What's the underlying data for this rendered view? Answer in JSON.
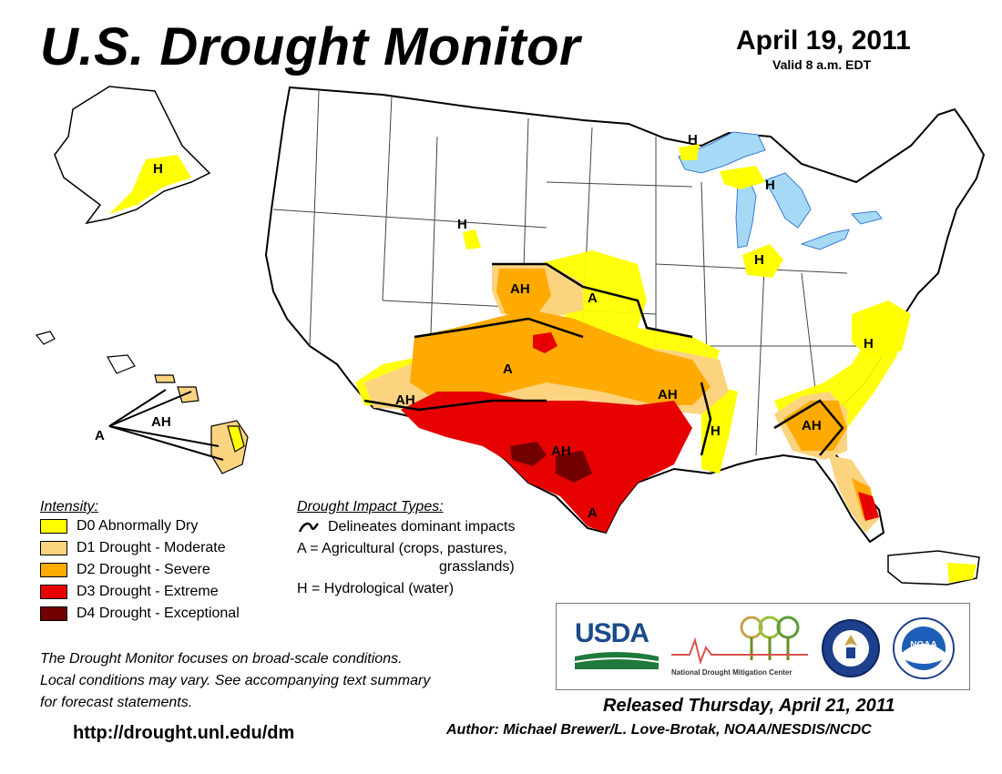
{
  "header": {
    "title": "U.S. Drought Monitor",
    "date": "April 19, 2011",
    "valid": "Valid 8 a.m. EDT"
  },
  "legend": {
    "intensity_heading": "Intensity:",
    "items": [
      {
        "label": "D0 Abnormally Dry",
        "color": "#ffff00"
      },
      {
        "label": "D1 Drought - Moderate",
        "color": "#fcd37f"
      },
      {
        "label": "D2 Drought - Severe",
        "color": "#ffaa00"
      },
      {
        "label": "D3 Drought - Extreme",
        "color": "#e60000"
      },
      {
        "label": "D4 Drought - Exceptional",
        "color": "#730000"
      }
    ]
  },
  "impacts": {
    "heading": "Drought Impact Types:",
    "delineates": "Delineates dominant impacts",
    "agricultural_1": "A = Agricultural (crops, pastures,",
    "agricultural_2": "grasslands)",
    "hydrological": "H = Hydrological (water)"
  },
  "disclaimer": {
    "line1": "The Drought Monitor focuses on broad-scale conditions.",
    "line2": "Local conditions may vary. See accompanying text summary",
    "line3": "for forecast statements."
  },
  "url": "http://drought.unl.edu/dm",
  "footer": {
    "released": "Released Thursday, April 21, 2011",
    "author": "Author: Michael Brewer/L. Love-Brotak, NOAA/NESDIS/NCDC"
  },
  "logos": {
    "usda": "USDA",
    "ndmc_line1": "National",
    "ndmc_line2": "Drought Mitigation Center",
    "noaa": "NOAA"
  },
  "map_labels": {
    "alaska_h": "H",
    "wyoming_h": "H",
    "superior_h": "H",
    "michigan_h": "H",
    "indiana_h": "H",
    "carolina_h": "H",
    "louisiana_h": "H",
    "colorado_ah": "AH",
    "kansas_a": "A",
    "newmexico_a": "A",
    "arizona_ah": "AH",
    "arkansas_ah": "AH",
    "texas_ah": "AH",
    "georgia_ah": "AH",
    "texas_coast_a": "A",
    "hawaii_ah": "AH",
    "hawaii_a": "A"
  }
}
